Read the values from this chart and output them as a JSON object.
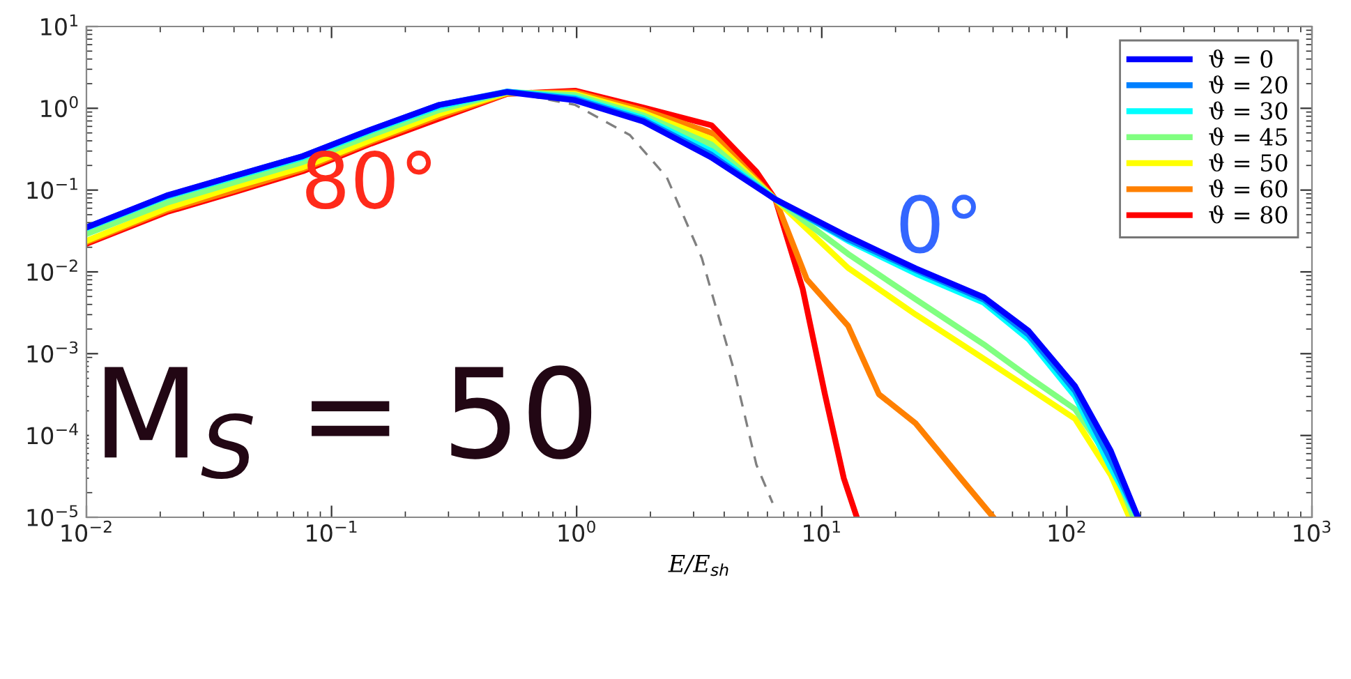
{
  "chart_data": {
    "type": "line",
    "xlabel": "E/E$_{sh}$",
    "log": "xy",
    "legend": "top right",
    "grid": false,
    "marker": "none",
    "line_style": "solid",
    "xlim": [
      0.01,
      1000
    ],
    "ylim": [
      1e-05,
      10
    ],
    "xticks": [
      {
        "value": 0.01,
        "label": "10$^{−2}$"
      },
      {
        "value": 0.1,
        "label": "10$^{−1}$"
      },
      {
        "value": 1,
        "label": "10$^{0}$"
      },
      {
        "value": 10,
        "label": "10$^{1}$"
      },
      {
        "value": 100,
        "label": "10$^{2}$"
      },
      {
        "value": 1000,
        "label": "10$^{3}$"
      }
    ],
    "yticks": [
      {
        "value": 1e-05,
        "label": "10$^{−5}$"
      },
      {
        "value": 0.0001,
        "label": "10$^{−4}$"
      },
      {
        "value": 0.001,
        "label": "10$^{−3}$"
      },
      {
        "value": 0.01,
        "label": "10$^{−2}$"
      },
      {
        "value": 0.1,
        "label": "10$^{−1}$"
      },
      {
        "value": 1,
        "label": "10$^{0}$"
      },
      {
        "value": 10,
        "label": "10$^{1}$"
      }
    ],
    "series": [
      {
        "name": "ϑ = 0",
        "color": "#0000ff",
        "x": [
          0.01,
          0.0213,
          0.0404,
          0.0764,
          0.145,
          0.275,
          0.521,
          0.986,
          1.87,
          3.55,
          6.47,
          12.8,
          24.2,
          45.8,
          69.8,
          108,
          151,
          195
        ],
        "values": [
          0.035,
          0.086,
          0.15,
          0.26,
          0.55,
          1.1,
          1.58,
          1.25,
          0.69,
          0.25,
          0.077,
          0.027,
          0.011,
          0.0049,
          0.0019,
          0.0004,
          6.5e-05,
          1e-05
        ]
      },
      {
        "name": "ϑ = 20",
        "color": "#0080ff",
        "x": [
          0.01,
          0.0213,
          0.0404,
          0.0764,
          0.145,
          0.275,
          0.521,
          0.986,
          1.87,
          3.55,
          6.47,
          12.8,
          24.2,
          45.8,
          69.8,
          108,
          151,
          195
        ],
        "values": [
          0.035,
          0.085,
          0.15,
          0.26,
          0.55,
          1.1,
          1.6,
          1.3,
          0.72,
          0.27,
          0.077,
          0.025,
          0.0105,
          0.0046,
          0.0017,
          0.00035,
          5e-05,
          1e-05
        ]
      },
      {
        "name": "ϑ = 30",
        "color": "#00ffff",
        "x": [
          0.01,
          0.0213,
          0.0404,
          0.0764,
          0.145,
          0.275,
          0.521,
          0.986,
          1.87,
          3.55,
          6.47,
          12.8,
          24.2,
          45.8,
          69.8,
          108,
          151,
          195
        ],
        "values": [
          0.034,
          0.083,
          0.145,
          0.25,
          0.53,
          1.05,
          1.6,
          1.35,
          0.76,
          0.3,
          0.077,
          0.024,
          0.0095,
          0.0042,
          0.0015,
          0.0003,
          4e-05,
          1e-05
        ]
      },
      {
        "name": "ϑ = 45",
        "color": "#80ff80",
        "x": [
          0.01,
          0.0213,
          0.0404,
          0.0764,
          0.145,
          0.275,
          0.521,
          0.986,
          1.87,
          3.55,
          6.47,
          12.8,
          24.2,
          45.8,
          69.8,
          108,
          151,
          187
        ],
        "values": [
          0.029,
          0.07,
          0.125,
          0.22,
          0.47,
          0.95,
          1.58,
          1.45,
          0.82,
          0.36,
          0.077,
          0.0166,
          0.0046,
          0.0013,
          0.00052,
          0.00021,
          4.9e-05,
          1e-05
        ]
      },
      {
        "name": "ϑ = 50",
        "color": "#ffff00",
        "x": [
          0.01,
          0.0213,
          0.0404,
          0.0764,
          0.145,
          0.275,
          0.521,
          0.986,
          1.87,
          3.55,
          6.47,
          12.8,
          24.2,
          45.8,
          69.8,
          108,
          151,
          180
        ],
        "values": [
          0.024,
          0.06,
          0.11,
          0.19,
          0.41,
          0.85,
          1.55,
          1.5,
          0.88,
          0.42,
          0.077,
          0.0112,
          0.003,
          0.00087,
          0.00038,
          0.00016,
          3.3e-05,
          1e-05
        ]
      },
      {
        "name": "ϑ = 60",
        "color": "#ff8000",
        "x": [
          0.01,
          0.0213,
          0.0404,
          0.0764,
          0.145,
          0.275,
          0.521,
          0.986,
          1.87,
          3.55,
          6.47,
          8.69,
          12.8,
          17.1,
          24.2,
          36.9,
          50.1
        ],
        "values": [
          0.023,
          0.057,
          0.1,
          0.18,
          0.39,
          0.8,
          1.52,
          1.57,
          0.95,
          0.5,
          0.077,
          0.0081,
          0.0022,
          0.00032,
          0.00014,
          3e-05,
          1e-05
        ]
      },
      {
        "name": "ϑ = 80",
        "color": "#ff0000",
        "x": [
          0.01,
          0.0213,
          0.0404,
          0.0764,
          0.145,
          0.275,
          0.521,
          0.986,
          1.87,
          3.55,
          5.41,
          6.47,
          8.36,
          10.3,
          12.3,
          13.9
        ],
        "values": [
          0.022,
          0.054,
          0.095,
          0.17,
          0.37,
          0.75,
          1.5,
          1.64,
          1.02,
          0.62,
          0.168,
          0.077,
          0.0062,
          0.00032,
          3e-05,
          1e-05
        ]
      },
      {
        "color": "#808080",
        "line_style": "dashed",
        "x": [
          0.521,
          0.986,
          1.65,
          2.33,
          3.24,
          4.41,
          5.41,
          6.3
        ],
        "values": [
          1.6,
          1.1,
          0.47,
          0.144,
          0.0148,
          0.00059,
          4.4e-05,
          1.5e-05
        ]
      }
    ],
    "annotations": [
      "80°",
      "0°",
      "M$_{S}$ = 50"
    ]
  }
}
